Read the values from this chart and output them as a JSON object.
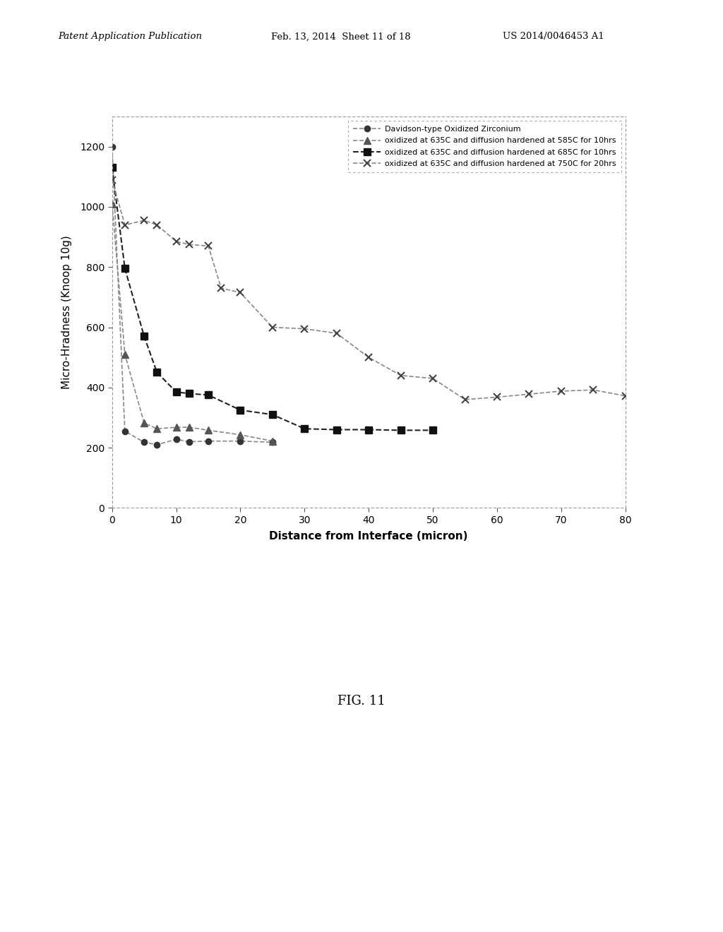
{
  "header_left": "Patent Application Publication",
  "header_mid": "Feb. 13, 2014  Sheet 11 of 18",
  "header_right": "US 2014/0046453 A1",
  "fig_label": "FIG. 11",
  "xlabel": "Distance from Interface (micron)",
  "ylabel": "Micro-Hradness (Knoop 10g)",
  "xlim": [
    0,
    80
  ],
  "ylim": [
    0,
    1300
  ],
  "yticks": [
    0,
    200,
    400,
    600,
    800,
    1000,
    1200
  ],
  "xticks": [
    0,
    10,
    20,
    30,
    40,
    50,
    60,
    70,
    80
  ],
  "series1_label": "Davidson-type Oxidized Zirconium",
  "series1_x": [
    0,
    2,
    5,
    7,
    10,
    12,
    15,
    20,
    25
  ],
  "series1_y": [
    1200,
    255,
    218,
    210,
    228,
    220,
    222,
    222,
    218
  ],
  "series1_color": "#888888",
  "series1_linestyle": "--",
  "series1_marker": "o",
  "series1_markersize": 6,
  "series1_markerfacecolor": "#333333",
  "series2_label": "oxidized at 635C and diffusion hardened at 585C for 10hrs",
  "series2_x": [
    0,
    2,
    5,
    7,
    10,
    12,
    15,
    20,
    25
  ],
  "series2_y": [
    1010,
    510,
    282,
    263,
    268,
    268,
    258,
    243,
    222
  ],
  "series2_color": "#888888",
  "series2_linestyle": "--",
  "series2_marker": "^",
  "series2_markersize": 7,
  "series2_markerfacecolor": "#555555",
  "series3_label": "oxidized at 635C and diffusion hardened at 685C for 10hrs",
  "series3_x": [
    0,
    2,
    5,
    7,
    10,
    12,
    15,
    20,
    25,
    30,
    35,
    40,
    45,
    50
  ],
  "series3_y": [
    1130,
    795,
    570,
    450,
    385,
    380,
    375,
    325,
    310,
    263,
    260,
    260,
    258,
    258
  ],
  "series3_color": "#222222",
  "series3_linestyle": "--",
  "series3_marker": "s",
  "series3_markersize": 7,
  "series3_markerfacecolor": "#111111",
  "series4_label": "oxidized at 635C and diffusion hardened at 750C for 20hrs",
  "series4_x": [
    0,
    2,
    5,
    7,
    10,
    12,
    15,
    17,
    20,
    25,
    30,
    35,
    40,
    45,
    50,
    55,
    60,
    65,
    70,
    75,
    80
  ],
  "series4_y": [
    1090,
    940,
    955,
    940,
    885,
    875,
    870,
    730,
    715,
    600,
    595,
    580,
    500,
    440,
    430,
    360,
    368,
    378,
    388,
    392,
    372
  ],
  "series4_color": "#888888",
  "series4_linestyle": "--",
  "series4_marker": "x",
  "series4_markersize": 7,
  "series4_markeredgecolor": "#444444",
  "background_color": "#ffffff"
}
